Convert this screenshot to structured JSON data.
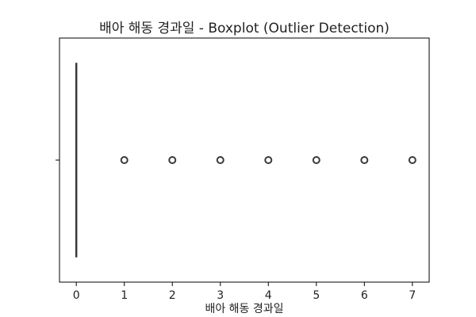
{
  "chart_data": {
    "type": "boxplot",
    "orientation": "horizontal",
    "title": "배아 해동 경과일 - Boxplot (Outlier Detection)",
    "xlabel": "배아 해동 경과일",
    "ylabel": "",
    "xlim": [
      -0.35,
      7.35
    ],
    "xticks": [
      0,
      1,
      2,
      3,
      4,
      5,
      6,
      7
    ],
    "box": {
      "min": 0,
      "q1": 0,
      "median": 0,
      "q3": 0,
      "max": 0
    },
    "outliers": [
      1,
      2,
      3,
      4,
      5,
      6,
      7
    ],
    "grid": false,
    "colors": {
      "box_edge": "#3a3a3a",
      "outlier_edge": "#3a3a3a",
      "axes": "#000000"
    }
  }
}
